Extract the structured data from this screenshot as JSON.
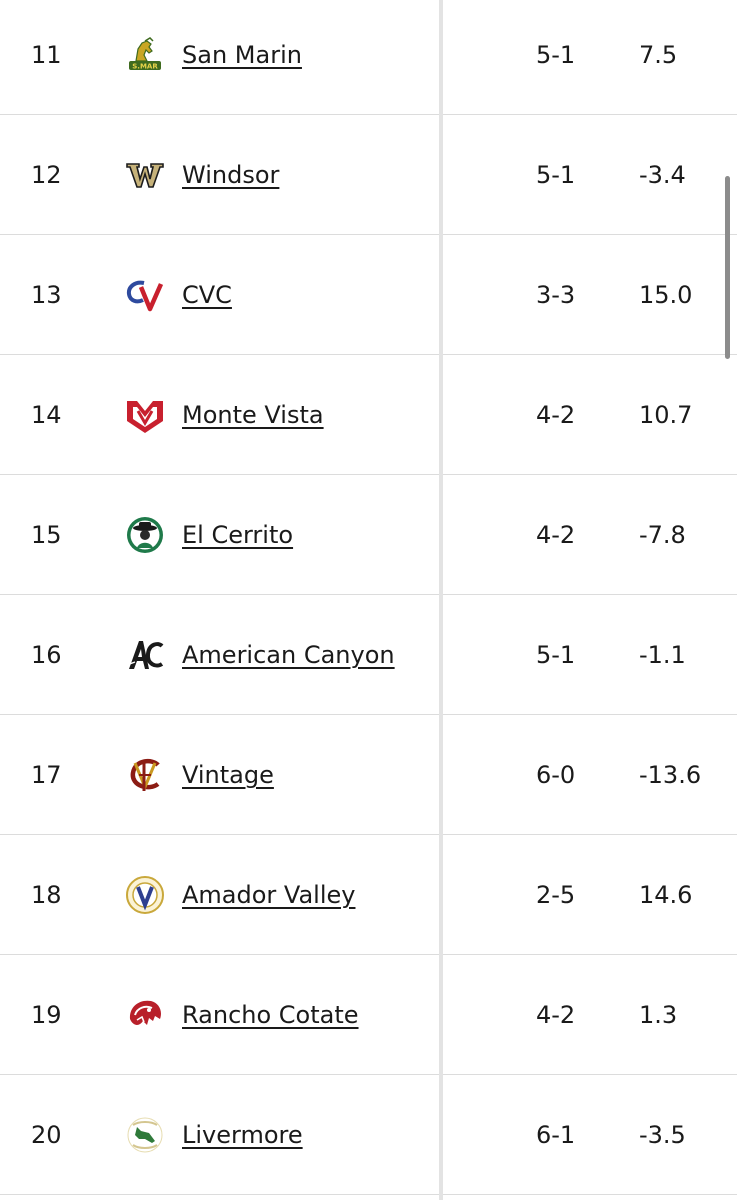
{
  "rows": [
    {
      "rank": "11",
      "team": "San Marin",
      "record": "5-1",
      "rating": "7.5",
      "logo": "san-marin-mustang-logo"
    },
    {
      "rank": "12",
      "team": "Windsor",
      "record": "5-1",
      "rating": "-3.4",
      "logo": "windsor-w-logo"
    },
    {
      "rank": "13",
      "team": "CVC",
      "record": "3-3",
      "rating": "15.0",
      "logo": "cvc-logo"
    },
    {
      "rank": "14",
      "team": "Monte Vista",
      "record": "4-2",
      "rating": "10.7",
      "logo": "monte-vista-mv-logo"
    },
    {
      "rank": "15",
      "team": "El Cerrito",
      "record": "4-2",
      "rating": "-7.8",
      "logo": "el-cerrito-gaucho-logo"
    },
    {
      "rank": "16",
      "team": "American Canyon",
      "record": "5-1",
      "rating": "-1.1",
      "logo": "american-canyon-ac-logo"
    },
    {
      "rank": "17",
      "team": "Vintage",
      "record": "6-0",
      "rating": "-13.6",
      "logo": "vintage-vc-logo"
    },
    {
      "rank": "18",
      "team": "Amador Valley",
      "record": "2-5",
      "rating": "14.6",
      "logo": "amador-valley-seal-logo"
    },
    {
      "rank": "19",
      "team": "Rancho Cotate",
      "record": "4-2",
      "rating": "1.3",
      "logo": "rancho-cotate-cougar-logo"
    },
    {
      "rank": "20",
      "team": "Livermore",
      "record": "6-1",
      "rating": "-3.5",
      "logo": "livermore-cowboys-logo"
    }
  ],
  "colors": {
    "text": "#1a1a1a",
    "row_border": "#dcdcdc",
    "divider": "#e3e3e3",
    "scrollbar": "#8c8c8c"
  }
}
